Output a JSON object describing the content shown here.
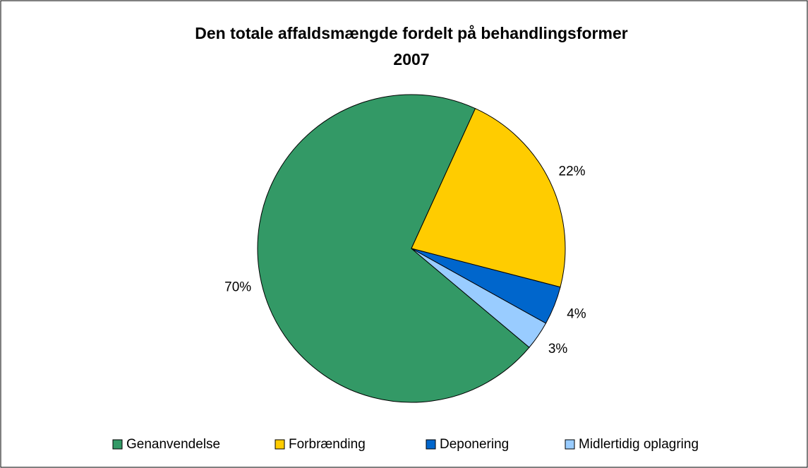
{
  "chart_data": {
    "type": "pie",
    "title": [
      "Den totale affaldsmængde fordelt på behandlingsformer",
      "2007"
    ],
    "categories": [
      "Genanvendelse",
      "Forbrænding",
      "Deponering",
      "Midlertidig oplagring"
    ],
    "values": [
      70,
      22,
      4,
      3
    ],
    "value_labels": [
      "70%",
      "22%",
      "4%",
      "3%"
    ],
    "colors": [
      "#339966",
      "#ffcc00",
      "#0066cc",
      "#99ccff"
    ],
    "legend": "bottom"
  }
}
